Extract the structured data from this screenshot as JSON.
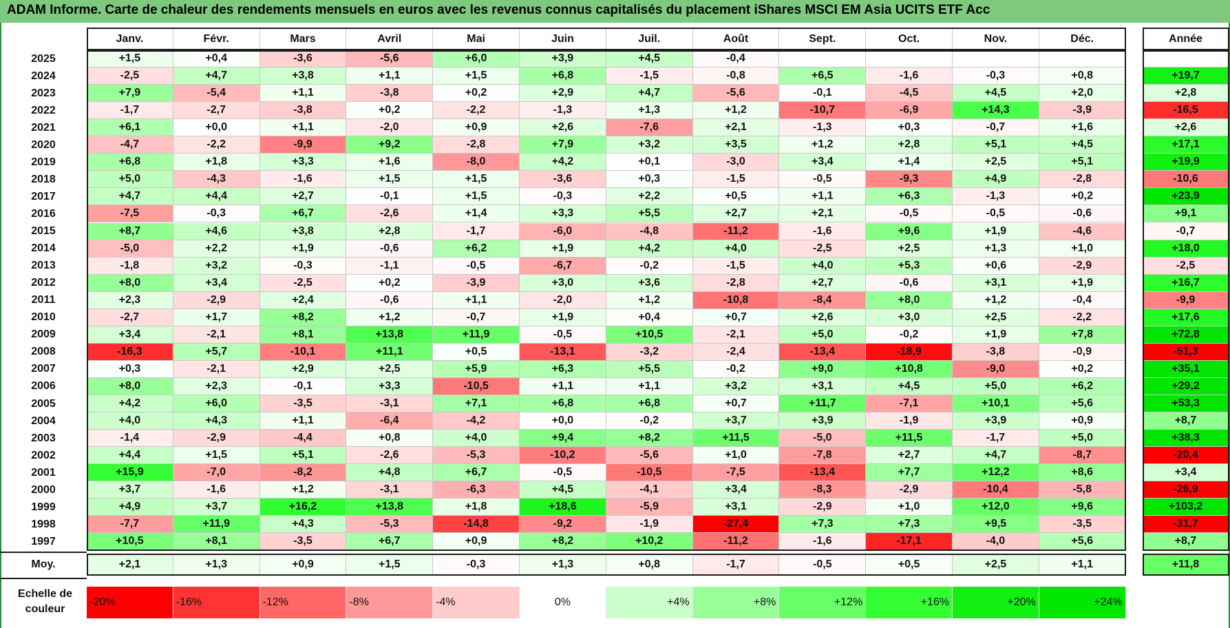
{
  "title": "ADAM Informe. Carte de chaleur des rendements mensuels en euros avec les revenus connus capitalisés du placement iShares MSCI EM Asia UCITS ETF Acc",
  "chart_data": {
    "type": "heatmap",
    "columns": [
      "Janv.",
      "Févr.",
      "Mars",
      "Avril",
      "Mai",
      "Juin",
      "Juil.",
      "Août",
      "Sept.",
      "Oct.",
      "Nov.",
      "Déc."
    ],
    "year_column": "Année",
    "rows": [
      {
        "year": "2025",
        "values": [
          "+1,5",
          "+0,4",
          "-3,6",
          "-5,6",
          "+6,0",
          "+3,9",
          "+4,5",
          "-0,4",
          "",
          "",
          "",
          ""
        ],
        "annual": ""
      },
      {
        "year": "2024",
        "values": [
          "-2,5",
          "+4,7",
          "+3,8",
          "+1,1",
          "+1,5",
          "+6,8",
          "-1,5",
          "-0,8",
          "+6,5",
          "-1,6",
          "-0,3",
          "+0,8"
        ],
        "annual": "+19,7"
      },
      {
        "year": "2023",
        "values": [
          "+7,9",
          "-5,4",
          "+1,1",
          "-3,8",
          "+0,2",
          "+2,9",
          "+4,7",
          "-5,6",
          "-0,1",
          "-4,5",
          "+4,5",
          "+2,0"
        ],
        "annual": "+2,8"
      },
      {
        "year": "2022",
        "values": [
          "-1,7",
          "-2,7",
          "-3,8",
          "+0,2",
          "-2,2",
          "-1,3",
          "+1,3",
          "+1,2",
          "-10,7",
          "-6,9",
          "+14,3",
          "-3,9"
        ],
        "annual": "-16,5"
      },
      {
        "year": "2021",
        "values": [
          "+6,1",
          "+0,0",
          "+1,1",
          "-2,0",
          "+0,9",
          "+2,6",
          "-7,6",
          "+2,1",
          "-1,3",
          "+0,3",
          "-0,7",
          "+1,6"
        ],
        "annual": "+2,6"
      },
      {
        "year": "2020",
        "values": [
          "-4,7",
          "-2,2",
          "-9,9",
          "+9,2",
          "-2,8",
          "+7,9",
          "+3,2",
          "+3,5",
          "+1,2",
          "+2,8",
          "+5,1",
          "+4,5"
        ],
        "annual": "+17,1"
      },
      {
        "year": "2019",
        "values": [
          "+6,8",
          "+1,8",
          "+3,3",
          "+1,6",
          "-8,0",
          "+4,2",
          "+0,1",
          "-3,0",
          "+3,4",
          "+1,4",
          "+2,5",
          "+5,1"
        ],
        "annual": "+19,9"
      },
      {
        "year": "2018",
        "values": [
          "+5,0",
          "-4,3",
          "-1,6",
          "+1,5",
          "+1,5",
          "-3,6",
          "+0,3",
          "-1,5",
          "-0,5",
          "-9,3",
          "+4,9",
          "-2,8"
        ],
        "annual": "-10,6"
      },
      {
        "year": "2017",
        "values": [
          "+4,7",
          "+4,4",
          "+2,7",
          "-0,1",
          "+1,5",
          "-0,3",
          "+2,2",
          "+0,5",
          "+1,1",
          "+6,3",
          "-1,3",
          "+0,2"
        ],
        "annual": "+23,9"
      },
      {
        "year": "2016",
        "values": [
          "-7,5",
          "-0,3",
          "+6,7",
          "-2,6",
          "+1,4",
          "+3,3",
          "+5,5",
          "+2,7",
          "+2,1",
          "-0,5",
          "-0,5",
          "-0,6"
        ],
        "annual": "+9,1"
      },
      {
        "year": "2015",
        "values": [
          "+8,7",
          "+4,6",
          "+3,8",
          "+2,8",
          "-1,7",
          "-6,0",
          "-4,8",
          "-11,2",
          "-1,6",
          "+9,6",
          "+1,9",
          "-4,6"
        ],
        "annual": "-0,7"
      },
      {
        "year": "2014",
        "values": [
          "-5,0",
          "+2,2",
          "+1,9",
          "-0,6",
          "+6,2",
          "+1,9",
          "+4,2",
          "+4,0",
          "-2,5",
          "+2,5",
          "+1,3",
          "+1,0"
        ],
        "annual": "+18,0"
      },
      {
        "year": "2013",
        "values": [
          "-1,8",
          "+3,2",
          "-0,3",
          "-1,1",
          "-0,5",
          "-6,7",
          "-0,2",
          "-1,5",
          "+4,0",
          "+5,3",
          "+0,6",
          "-2,9"
        ],
        "annual": "-2,5"
      },
      {
        "year": "2012",
        "values": [
          "+8,0",
          "+3,4",
          "-2,5",
          "+0,2",
          "-3,9",
          "+3,0",
          "+3,6",
          "-2,8",
          "+2,7",
          "-0,6",
          "+3,1",
          "+1,9"
        ],
        "annual": "+16,7"
      },
      {
        "year": "2011",
        "values": [
          "+2,3",
          "-2,9",
          "+2,4",
          "-0,6",
          "+1,1",
          "-2,0",
          "+1,2",
          "-10,8",
          "-8,4",
          "+8,0",
          "+1,2",
          "-0,4"
        ],
        "annual": "-9,9"
      },
      {
        "year": "2010",
        "values": [
          "-2,7",
          "+1,7",
          "+8,2",
          "+1,2",
          "-0,7",
          "+1,9",
          "+0,4",
          "+0,7",
          "+2,6",
          "+3,0",
          "+2,5",
          "-2,2"
        ],
        "annual": "+17,6"
      },
      {
        "year": "2009",
        "values": [
          "+3,4",
          "-2,1",
          "+8,1",
          "+13,8",
          "+11,9",
          "-0,5",
          "+10,5",
          "-2,1",
          "+5,0",
          "-0,2",
          "+1,9",
          "+7,8"
        ],
        "annual": "+72,8"
      },
      {
        "year": "2008",
        "values": [
          "-16,3",
          "+5,7",
          "-10,1",
          "+11,1",
          "+0,5",
          "-13,1",
          "-3,2",
          "-2,4",
          "-13,4",
          "-18,9",
          "-3,8",
          "-0,9"
        ],
        "annual": "-51,3"
      },
      {
        "year": "2007",
        "values": [
          "+0,3",
          "-2,1",
          "+2,9",
          "+2,5",
          "+5,9",
          "+6,3",
          "+5,5",
          "-0,2",
          "+9,0",
          "+10,8",
          "-9,0",
          "+0,2"
        ],
        "annual": "+35,1"
      },
      {
        "year": "2006",
        "values": [
          "+8,0",
          "+2,3",
          "-0,1",
          "+3,3",
          "-10,5",
          "+1,1",
          "+1,1",
          "+3,2",
          "+3,1",
          "+4,5",
          "+5,0",
          "+6,2"
        ],
        "annual": "+29,2"
      },
      {
        "year": "2005",
        "values": [
          "+4,2",
          "+6,0",
          "-3,5",
          "-3,1",
          "+7,1",
          "+6,8",
          "+6,8",
          "+0,7",
          "+11,7",
          "-7,1",
          "+10,1",
          "+5,6"
        ],
        "annual": "+53,3"
      },
      {
        "year": "2004",
        "values": [
          "+4,0",
          "+4,3",
          "+1,1",
          "-6,4",
          "-4,2",
          "+0,0",
          "-0,2",
          "+3,7",
          "+3,9",
          "-1,9",
          "+3,9",
          "+0,9"
        ],
        "annual": "+8,7"
      },
      {
        "year": "2003",
        "values": [
          "-1,4",
          "-2,9",
          "-4,4",
          "+0,8",
          "+4,0",
          "+9,4",
          "+8,2",
          "+11,5",
          "-5,0",
          "+11,5",
          "-1,7",
          "+5,0"
        ],
        "annual": "+38,3"
      },
      {
        "year": "2002",
        "values": [
          "+4,4",
          "+1,5",
          "+5,1",
          "-2,6",
          "-5,3",
          "-10,2",
          "-5,6",
          "+1,0",
          "-7,8",
          "+2,7",
          "+4,7",
          "-8,7"
        ],
        "annual": "-20,4"
      },
      {
        "year": "2001",
        "values": [
          "+15,9",
          "-7,0",
          "-8,2",
          "+4,8",
          "+6,7",
          "-0,5",
          "-10,5",
          "-7,5",
          "-13,4",
          "+7,7",
          "+12,2",
          "+8,6"
        ],
        "annual": "+3,4"
      },
      {
        "year": "2000",
        "values": [
          "+3,7",
          "-1,6",
          "+1,2",
          "-3,1",
          "-6,3",
          "+4,5",
          "-4,1",
          "+3,4",
          "-8,3",
          "-2,9",
          "-10,4",
          "-5,8"
        ],
        "annual": "-26,9"
      },
      {
        "year": "1999",
        "values": [
          "+4,9",
          "+3,7",
          "+16,2",
          "+13,8",
          "+1,8",
          "+18,6",
          "-5,9",
          "+3,1",
          "-2,9",
          "+1,0",
          "+12,0",
          "+9,6"
        ],
        "annual": "+103,2"
      },
      {
        "year": "1998",
        "values": [
          "-7,7",
          "+11,9",
          "+4,3",
          "-5,3",
          "-14,8",
          "-9,2",
          "-1,9",
          "-27,4",
          "+7,3",
          "+7,3",
          "+9,5",
          "-3,5"
        ],
        "annual": "-31,7"
      },
      {
        "year": "1997",
        "values": [
          "+10,5",
          "+8,1",
          "-3,5",
          "+6,7",
          "+0,9",
          "+8,2",
          "+10,2",
          "-11,2",
          "-1,6",
          "-17,1",
          "-4,0",
          "+5,6"
        ],
        "annual": "+8,7"
      }
    ],
    "average": {
      "label": "Moy.",
      "values": [
        "+2,1",
        "+1,3",
        "+0,9",
        "+1,5",
        "-0,3",
        "+1,3",
        "+0,8",
        "-1,7",
        "-0,5",
        "+0,5",
        "+2,5",
        "+1,1"
      ],
      "annual": "+11,8"
    },
    "scale": {
      "label": "Echelle de couleur",
      "stops": [
        {
          "label": "-20%",
          "value": -20,
          "color": "#ff0000"
        },
        {
          "label": "-16%",
          "value": -16,
          "color": "#ff3333"
        },
        {
          "label": "-12%",
          "value": -12,
          "color": "#ff6666"
        },
        {
          "label": "-8%",
          "value": -8,
          "color": "#ff9999"
        },
        {
          "label": "-4%",
          "value": -4,
          "color": "#ffcccc"
        },
        {
          "label": "0%",
          "value": 0,
          "color": "#ffffff"
        },
        {
          "label": "+4%",
          "value": 4,
          "color": "#ccffcc"
        },
        {
          "label": "+8%",
          "value": 8,
          "color": "#99ff99"
        },
        {
          "label": "+12%",
          "value": 12,
          "color": "#66ff66"
        },
        {
          "label": "+16%",
          "value": 16,
          "color": "#33ff33"
        },
        {
          "label": "+20%",
          "value": 20,
          "color": "#11f011"
        },
        {
          "label": "+24%",
          "value": 24,
          "color": "#00e600"
        }
      ]
    }
  }
}
